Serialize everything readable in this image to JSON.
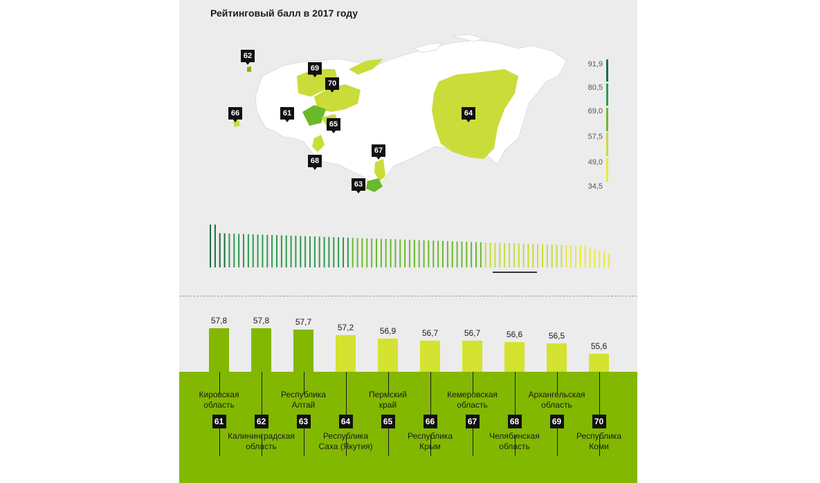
{
  "title": "Рейтинговый балл в 2017 году",
  "legend_ticks": [
    "91,9",
    "80,5",
    "69,0",
    "57,5",
    "49,0",
    "34,5"
  ],
  "legend_colors": [
    "#1e6b45",
    "#2e9a4f",
    "#6ab92a",
    "#c9dc3a",
    "#eaea3a"
  ],
  "map_pins": [
    "62",
    "69",
    "70",
    "66",
    "61",
    "65",
    "64",
    "67",
    "68",
    "63"
  ],
  "chart_data": {
    "type": "bar",
    "title": "Рейтинговый балл в 2017 году",
    "categories": [
      "Кировская область",
      "Калининградская область",
      "Республика Алтай",
      "Республика Саха (Якутия)",
      "Пермский край",
      "Республика Крым",
      "Кемеровская область",
      "Челябинская область",
      "Архангельская область",
      "Республика Коми"
    ],
    "ranks": [
      "61",
      "62",
      "63",
      "64",
      "65",
      "66",
      "67",
      "68",
      "69",
      "70"
    ],
    "values": [
      57.8,
      57.8,
      57.7,
      57.2,
      56.9,
      56.7,
      56.7,
      56.6,
      56.5,
      55.6
    ],
    "value_labels": [
      "57,8",
      "57,8",
      "57,7",
      "57,2",
      "56,9",
      "56,7",
      "56,7",
      "56,6",
      "56,5",
      "55,6"
    ],
    "colors": [
      "#83b800",
      "#83b800",
      "#83b800",
      "#d4e230",
      "#d4e230",
      "#d4e230",
      "#d4e230",
      "#d4e230",
      "#d4e230",
      "#d4e230"
    ],
    "xlabel": "",
    "ylabel": ""
  }
}
